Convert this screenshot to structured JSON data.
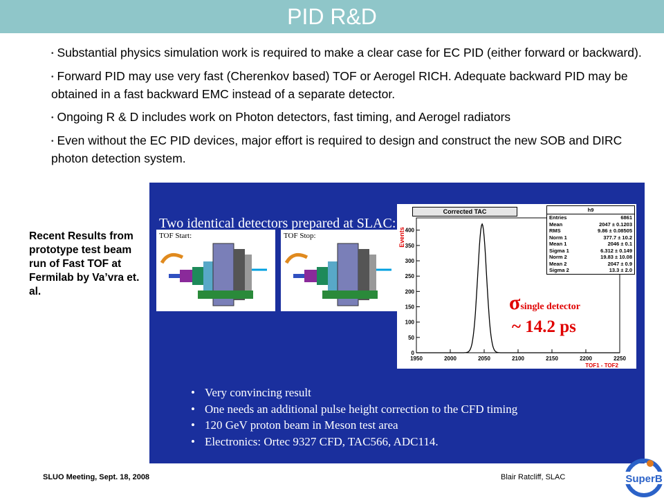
{
  "slide": {
    "title": "PID R&D",
    "bullets": [
      "Substantial physics simulation work is required to make a clear case for EC PID    (either forward or backward).",
      "Forward PID may use very fast (Cherenkov based) TOF or Aerogel RICH. Adequate backward PID may be obtained in a fast backward EMC instead of a separate detector.",
      "Ongoing R & D includes work on Photon detectors, fast timing, and Aerogel radiators",
      "Even without the EC PID devices, major effort is required to design and construct the new SOB and DIRC photon detection system."
    ],
    "caption": "Recent Results from prototype test beam run of Fast TOF at Fermilab by Va’vra et. al."
  },
  "panel": {
    "heading": "Two identical detectors prepared at SLAC:",
    "diagram_start": "TOF Start:",
    "diagram_stop": "TOF Stop:",
    "results": [
      "Very convincing result",
      "One needs an additional pulse height correction to the CFD timing",
      "120 GeV proton beam in Meson test area",
      "Electronics: Ortec 9327 CFD, TAC566, ADC114."
    ],
    "sigma_symbol": "σ",
    "sigma_subscript": "single detector",
    "sigma_value": "~ 14.2 ps"
  },
  "chart_data": {
    "type": "histogram",
    "title": "Corrected TAC",
    "ylabel": "Events",
    "xlabel": "TOF1 - TOF2",
    "xlim": [
      1950,
      2250
    ],
    "ylim": [
      0,
      440
    ],
    "x_ticks": [
      1950,
      2000,
      2050,
      2100,
      2150,
      2200,
      2250
    ],
    "y_ticks": [
      0,
      50,
      100,
      150,
      200,
      250,
      300,
      350,
      400
    ],
    "peak_x": 2047,
    "peak_height": 420,
    "peak_sigma": 6.5,
    "stats_box": {
      "name": "h9",
      "rows": [
        [
          "Entries",
          "6861"
        ],
        [
          "Mean",
          "2047 ± 0.1203"
        ],
        [
          "RMS",
          "9.86 ± 0.08505"
        ],
        [
          "Norm 1",
          "377.7 ± 10.2"
        ],
        [
          "Mean 1",
          "2046 ± 0.1"
        ],
        [
          "Sigma 1",
          "6.312 ± 0.149"
        ],
        [
          "Norm 2",
          "19.83 ± 10.08"
        ],
        [
          "Mean 2",
          "2047 ± 0.9"
        ],
        [
          "Sigma 2",
          "13.3 ± 2.0"
        ]
      ]
    }
  },
  "footer": {
    "left": "SLUO Meeting, Sept. 18, 2008",
    "right": "Blair Ratcliff, SLAC",
    "logo_text": "SuperB"
  },
  "colors": {
    "title_bar": "#8fc6c9",
    "panel_bg": "#1a2f9d",
    "sigma": "#e00000",
    "logo": "#2b62c8"
  }
}
